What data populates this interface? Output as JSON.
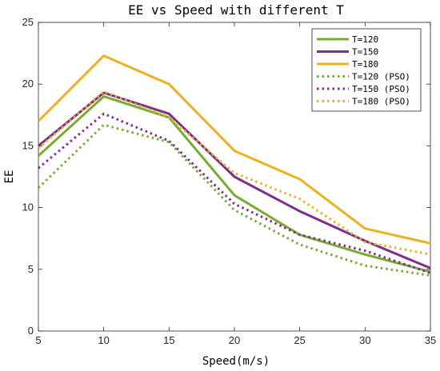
{
  "chart_data": {
    "type": "line",
    "title": "EE vs Speed with different T",
    "xlabel": "Speed(m/s)",
    "ylabel": "EE",
    "xlim": [
      5,
      35
    ],
    "ylim": [
      0,
      25
    ],
    "x_ticks": [
      "5",
      "10",
      "15",
      "20",
      "25",
      "30",
      "35"
    ],
    "y_ticks": [
      "0",
      "5",
      "10",
      "15",
      "20",
      "25"
    ],
    "grid": false,
    "legend_position": "top-right",
    "x": [
      5,
      10,
      15,
      20,
      25,
      30,
      35
    ],
    "series": [
      {
        "name": "T=120",
        "style": "solid",
        "color": "#77AC30",
        "values": [
          14.2,
          19.0,
          17.3,
          11.0,
          7.8,
          6.2,
          4.8
        ]
      },
      {
        "name": "T=150",
        "style": "solid",
        "color": "#7E2F8E",
        "values": [
          15.0,
          19.3,
          17.6,
          12.5,
          9.7,
          7.3,
          5.1
        ]
      },
      {
        "name": "T=180",
        "style": "solid",
        "color": "#EDB120",
        "values": [
          17.0,
          22.3,
          20.0,
          14.6,
          12.3,
          8.3,
          7.1
        ]
      },
      {
        "name": "T=120 (PSO)",
        "style": "dotted",
        "color": "#77AC30",
        "values": [
          11.6,
          16.7,
          15.3,
          9.8,
          7.0,
          5.3,
          4.5
        ]
      },
      {
        "name": "T=150 (PSO)",
        "style": "dotted",
        "color": "#7E2F8E",
        "values": [
          13.2,
          17.6,
          15.4,
          10.3,
          7.8,
          6.5,
          4.7
        ]
      },
      {
        "name": "T=180 (PSO)",
        "style": "dotted",
        "color": "#EDB120",
        "values": [
          14.8,
          19.4,
          17.3,
          12.8,
          10.7,
          7.2,
          6.2
        ]
      }
    ]
  }
}
